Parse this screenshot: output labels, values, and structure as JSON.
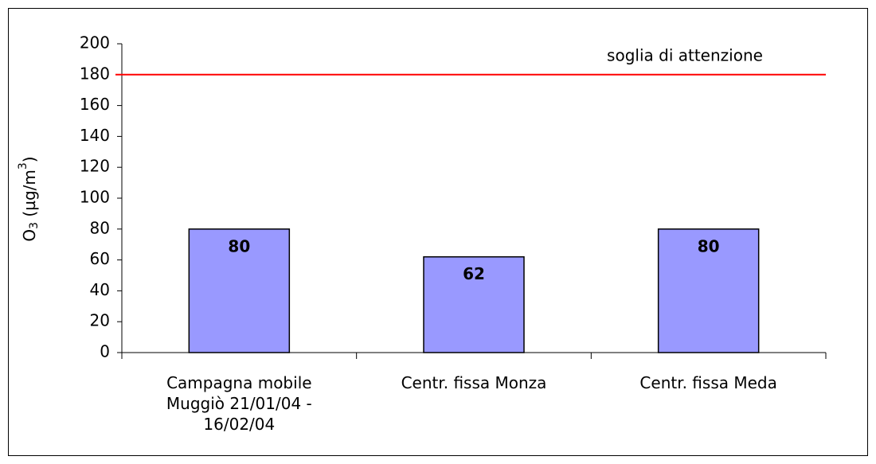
{
  "chart_data": {
    "type": "bar",
    "y_label": [
      "O",
      "3",
      " (µg/m",
      "3",
      ")"
    ],
    "categories": [
      "Campagna mobile Muggiò 21/01/04 - 16/02/04",
      "Centr. fissa Monza",
      "Centr. fissa Meda"
    ],
    "values": [
      80,
      62,
      80
    ],
    "color": "#9999ff",
    "ylim": [
      0,
      200
    ],
    "yticks": [
      0,
      20,
      40,
      60,
      80,
      100,
      120,
      140,
      160,
      180,
      200
    ],
    "threshold": {
      "label": "soglia di attenzione",
      "value": 180,
      "color": "#ff0000"
    }
  }
}
